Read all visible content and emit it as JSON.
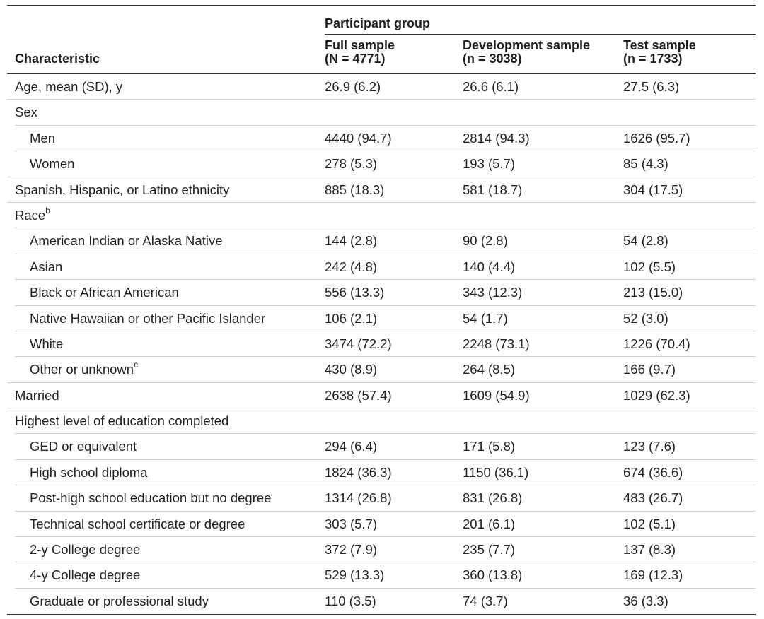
{
  "table": {
    "group_header": "Participant group",
    "columns": [
      {
        "line1": "Characteristic",
        "line2": ""
      },
      {
        "line1": "Full sample",
        "line2": "(N = 4771)"
      },
      {
        "line1": "Development sample",
        "line2": "(n = 3038)"
      },
      {
        "line1": "Test sample",
        "line2": "(n = 1733)"
      }
    ],
    "rows": [
      {
        "label": "Age, mean (SD), y",
        "sup": "",
        "indent": false,
        "values": [
          "26.9 (6.2)",
          "26.6 (6.1)",
          "27.5 (6.3)"
        ]
      },
      {
        "label": "Sex",
        "sup": "",
        "indent": false,
        "values": [
          "",
          "",
          ""
        ]
      },
      {
        "label": "Men",
        "sup": "",
        "indent": true,
        "values": [
          "4440 (94.7)",
          "2814 (94.3)",
          "1626 (95.7)"
        ]
      },
      {
        "label": "Women",
        "sup": "",
        "indent": true,
        "values": [
          "278 (5.3)",
          "193 (5.7)",
          "85 (4.3)"
        ]
      },
      {
        "label": "Spanish, Hispanic, or Latino ethnicity",
        "sup": "",
        "indent": false,
        "values": [
          "885 (18.3)",
          "581 (18.7)",
          "304 (17.5)"
        ]
      },
      {
        "label": "Race",
        "sup": "b",
        "indent": false,
        "values": [
          "",
          "",
          ""
        ]
      },
      {
        "label": "American Indian or Alaska Native",
        "sup": "",
        "indent": true,
        "values": [
          "144 (2.8)",
          "90 (2.8)",
          "54 (2.8)"
        ]
      },
      {
        "label": "Asian",
        "sup": "",
        "indent": true,
        "values": [
          "242 (4.8)",
          "140 (4.4)",
          "102 (5.5)"
        ]
      },
      {
        "label": "Black or African American",
        "sup": "",
        "indent": true,
        "values": [
          "556 (13.3)",
          "343 (12.3)",
          "213 (15.0)"
        ]
      },
      {
        "label": "Native Hawaiian or other Pacific Islander",
        "sup": "",
        "indent": true,
        "values": [
          "106 (2.1)",
          "54 (1.7)",
          "52 (3.0)"
        ]
      },
      {
        "label": "White",
        "sup": "",
        "indent": true,
        "values": [
          "3474 (72.2)",
          "2248 (73.1)",
          "1226 (70.4)"
        ]
      },
      {
        "label": "Other or unknown",
        "sup": "c",
        "indent": true,
        "values": [
          "430 (8.9)",
          "264 (8.5)",
          "166 (9.7)"
        ]
      },
      {
        "label": "Married",
        "sup": "",
        "indent": false,
        "values": [
          "2638 (57.4)",
          "1609 (54.9)",
          "1029 (62.3)"
        ]
      },
      {
        "label": "Highest level of education completed",
        "sup": "",
        "indent": false,
        "values": [
          "",
          "",
          ""
        ]
      },
      {
        "label": "GED or equivalent",
        "sup": "",
        "indent": true,
        "values": [
          "294 (6.4)",
          "171 (5.8)",
          "123 (7.6)"
        ]
      },
      {
        "label": "High school diploma",
        "sup": "",
        "indent": true,
        "values": [
          "1824 (36.3)",
          "1150 (36.1)",
          "674 (36.6)"
        ]
      },
      {
        "label": "Post-high school education but no degree",
        "sup": "",
        "indent": true,
        "values": [
          "1314 (26.8)",
          "831 (26.8)",
          "483 (26.7)"
        ]
      },
      {
        "label": "Technical school certificate or degree",
        "sup": "",
        "indent": true,
        "values": [
          "303 (5.7)",
          "201 (6.1)",
          "102 (5.1)"
        ]
      },
      {
        "label": "2-y College degree",
        "sup": "",
        "indent": true,
        "values": [
          "372 (7.9)",
          "235 (7.7)",
          "137 (8.3)"
        ]
      },
      {
        "label": "4-y College degree",
        "sup": "",
        "indent": true,
        "values": [
          "529 (13.3)",
          "360 (13.8)",
          "169 (12.3)"
        ]
      },
      {
        "label": "Graduate or professional study",
        "sup": "",
        "indent": true,
        "values": [
          "110 (3.5)",
          "74 (3.7)",
          "36 (3.3)"
        ]
      }
    ]
  }
}
